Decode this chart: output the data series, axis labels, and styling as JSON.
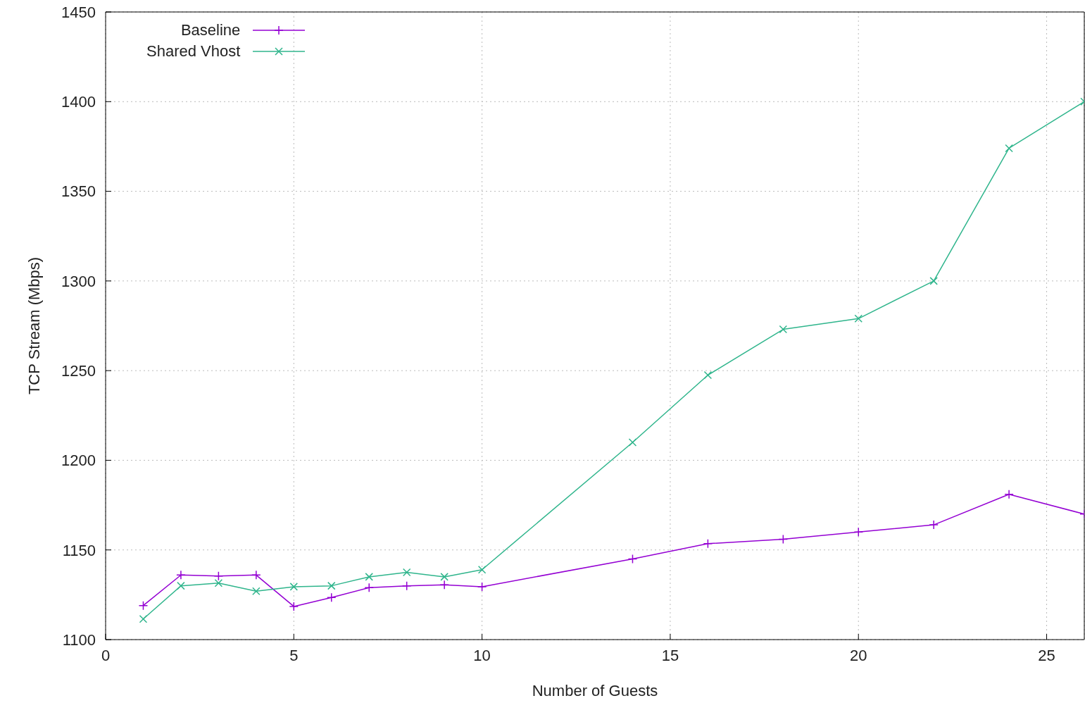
{
  "chart_data": {
    "type": "line",
    "xlabel": "Number of Guests",
    "ylabel": "TCP Stream (Mbps)",
    "x": [
      1,
      2,
      3,
      4,
      5,
      6,
      7,
      8,
      9,
      10,
      14,
      16,
      18,
      20,
      22,
      24,
      26
    ],
    "series": [
      {
        "name": "Baseline",
        "color": "#9400d3",
        "marker": "plus",
        "values": [
          1119,
          1136,
          1135.5,
          1136,
          1118.5,
          1123.5,
          1129,
          1130,
          1130.5,
          1129.5,
          1145,
          1153.5,
          1156,
          1160,
          1164,
          1181,
          1170
        ]
      },
      {
        "name": "Shared Vhost",
        "color": "#2fb58c",
        "marker": "cross",
        "values": [
          1111.5,
          1130,
          1131.5,
          1127,
          1129.5,
          1130,
          1135,
          1137.5,
          1135,
          1139,
          1210,
          1247.5,
          1273,
          1279,
          1300,
          1374,
          1400
        ]
      }
    ],
    "xlim": [
      0,
      26
    ],
    "xticks": [
      0,
      5,
      10,
      15,
      20,
      25
    ],
    "ylim": [
      1100,
      1450
    ],
    "yticks": [
      1100,
      1150,
      1200,
      1250,
      1300,
      1350,
      1400,
      1450
    ],
    "grid": true,
    "legend": "top left"
  }
}
